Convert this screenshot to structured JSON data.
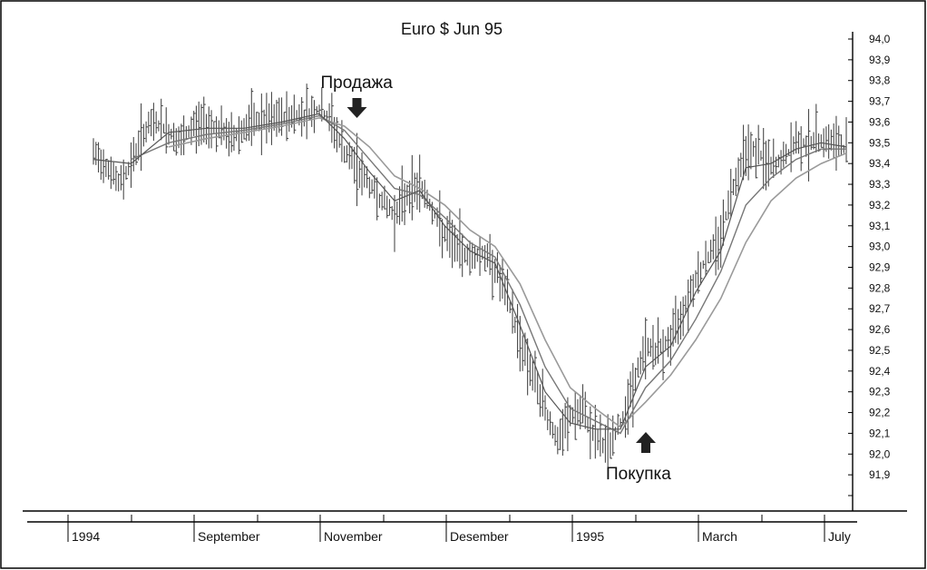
{
  "chart_data": {
    "type": "line",
    "title": "Euro $ Jun 95",
    "y_ticks": [
      "94,0",
      "93,9",
      "93,8",
      "93,7",
      "93,6",
      "93,5",
      "93,4",
      "93,3",
      "93,2",
      "93,1",
      "93,0",
      "92,9",
      "92,8",
      "92,7",
      "92,6",
      "92,5",
      "92,4",
      "92,3",
      "92,2",
      "92,1",
      "92,0",
      "91,9"
    ],
    "ylim": [
      91.8,
      94.0
    ],
    "y_axis_side": "right",
    "x_tick_labels": [
      "1994",
      "September",
      "November",
      "Desember",
      "1995",
      "March",
      "July"
    ],
    "grid": false,
    "legend": "none",
    "series_close": [
      [
        0,
        93.44
      ],
      [
        3,
        93.4
      ],
      [
        6,
        93.3
      ],
      [
        9,
        93.4
      ],
      [
        12,
        93.55
      ],
      [
        15,
        93.6
      ],
      [
        18,
        93.55
      ],
      [
        21,
        93.5
      ],
      [
        24,
        93.58
      ],
      [
        27,
        93.6
      ],
      [
        30,
        93.56
      ],
      [
        33,
        93.52
      ],
      [
        36,
        93.57
      ],
      [
        39,
        93.6
      ],
      [
        42,
        93.6
      ],
      [
        45,
        93.62
      ],
      [
        48,
        93.63
      ],
      [
        51,
        93.64
      ],
      [
        54,
        93.66
      ],
      [
        57,
        93.6
      ],
      [
        60,
        93.45
      ],
      [
        63,
        93.38
      ],
      [
        66,
        93.3
      ],
      [
        69,
        93.22
      ],
      [
        72,
        93.15
      ],
      [
        75,
        93.25
      ],
      [
        78,
        93.3
      ],
      [
        81,
        93.18
      ],
      [
        84,
        93.05
      ],
      [
        87,
        93.0
      ],
      [
        90,
        92.95
      ],
      [
        93,
        92.97
      ],
      [
        96,
        92.9
      ],
      [
        99,
        92.75
      ],
      [
        102,
        92.55
      ],
      [
        105,
        92.38
      ],
      [
        108,
        92.22
      ],
      [
        111,
        92.05
      ],
      [
        114,
        92.18
      ],
      [
        117,
        92.2
      ],
      [
        120,
        92.08
      ],
      [
        123,
        92.03
      ],
      [
        126,
        92.15
      ],
      [
        129,
        92.32
      ],
      [
        132,
        92.52
      ],
      [
        135,
        92.5
      ],
      [
        138,
        92.55
      ],
      [
        141,
        92.7
      ],
      [
        144,
        92.85
      ],
      [
        147,
        92.95
      ],
      [
        150,
        93.05
      ],
      [
        153,
        93.3
      ],
      [
        156,
        93.48
      ],
      [
        159,
        93.45
      ],
      [
        162,
        93.38
      ],
      [
        165,
        93.42
      ],
      [
        168,
        93.5
      ],
      [
        171,
        93.5
      ],
      [
        174,
        93.52
      ],
      [
        177,
        93.5
      ],
      [
        180,
        93.47
      ]
    ],
    "series_ma_short": [
      [
        0,
        93.42
      ],
      [
        9,
        93.4
      ],
      [
        18,
        93.55
      ],
      [
        27,
        93.57
      ],
      [
        36,
        93.57
      ],
      [
        45,
        93.6
      ],
      [
        54,
        93.64
      ],
      [
        60,
        93.52
      ],
      [
        66,
        93.36
      ],
      [
        72,
        93.22
      ],
      [
        78,
        93.27
      ],
      [
        84,
        93.1
      ],
      [
        90,
        92.98
      ],
      [
        96,
        92.92
      ],
      [
        102,
        92.62
      ],
      [
        108,
        92.3
      ],
      [
        114,
        92.15
      ],
      [
        120,
        92.12
      ],
      [
        126,
        92.12
      ],
      [
        132,
        92.42
      ],
      [
        138,
        92.52
      ],
      [
        144,
        92.78
      ],
      [
        150,
        92.98
      ],
      [
        156,
        93.38
      ],
      [
        162,
        93.4
      ],
      [
        168,
        93.47
      ],
      [
        174,
        93.5
      ],
      [
        180,
        93.48
      ]
    ],
    "series_ma_medium": [
      [
        9,
        93.42
      ],
      [
        18,
        93.5
      ],
      [
        27,
        93.54
      ],
      [
        36,
        93.56
      ],
      [
        45,
        93.59
      ],
      [
        54,
        93.63
      ],
      [
        60,
        93.56
      ],
      [
        66,
        93.42
      ],
      [
        72,
        93.28
      ],
      [
        78,
        93.25
      ],
      [
        84,
        93.14
      ],
      [
        90,
        93.02
      ],
      [
        96,
        92.95
      ],
      [
        102,
        92.72
      ],
      [
        108,
        92.42
      ],
      [
        114,
        92.22
      ],
      [
        120,
        92.16
      ],
      [
        126,
        92.1
      ],
      [
        132,
        92.32
      ],
      [
        138,
        92.45
      ],
      [
        144,
        92.65
      ],
      [
        150,
        92.88
      ],
      [
        156,
        93.2
      ],
      [
        162,
        93.33
      ],
      [
        168,
        93.42
      ],
      [
        174,
        93.47
      ],
      [
        180,
        93.47
      ]
    ],
    "series_ma_long": [
      [
        18,
        93.48
      ],
      [
        27,
        93.52
      ],
      [
        36,
        93.55
      ],
      [
        45,
        93.58
      ],
      [
        54,
        93.62
      ],
      [
        60,
        93.58
      ],
      [
        66,
        93.48
      ],
      [
        72,
        93.34
      ],
      [
        78,
        93.28
      ],
      [
        84,
        93.2
      ],
      [
        90,
        93.08
      ],
      [
        96,
        93.0
      ],
      [
        102,
        92.82
      ],
      [
        108,
        92.55
      ],
      [
        114,
        92.32
      ],
      [
        120,
        92.22
      ],
      [
        126,
        92.13
      ],
      [
        132,
        92.25
      ],
      [
        138,
        92.38
      ],
      [
        144,
        92.55
      ],
      [
        150,
        92.75
      ],
      [
        156,
        93.02
      ],
      [
        162,
        93.22
      ],
      [
        168,
        93.33
      ],
      [
        174,
        93.4
      ],
      [
        180,
        93.45
      ]
    ],
    "annotations": [
      {
        "text": "Продажа",
        "x": 63,
        "y": 93.65,
        "arrow": "down"
      },
      {
        "text": "Покупка",
        "x": 130,
        "y": 92.1,
        "arrow": "up"
      }
    ]
  },
  "colors": {
    "bars": "#4a4a4a",
    "ma_short": "#555555",
    "ma_medium": "#777777",
    "ma_long": "#9a9a9a",
    "arrow": "#222222"
  }
}
